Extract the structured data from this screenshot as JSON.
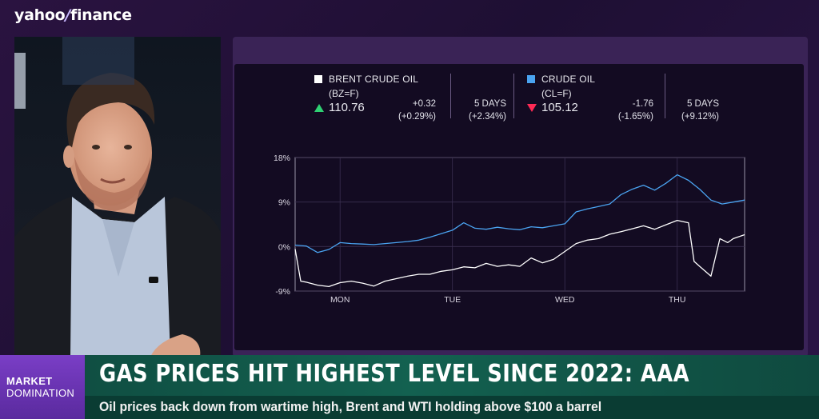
{
  "brand": {
    "logo_text_a": "yahoo",
    "logo_text_slash": "/",
    "logo_text_b": "finance"
  },
  "colors": {
    "brent": "#ffffff",
    "crude": "#4aa3f0",
    "up": "#2fd173",
    "down": "#ff2a55",
    "banner": "#136150",
    "show": "#6f35b8"
  },
  "quotes": [
    {
      "name": "BRENT CRUDE OIL",
      "symbol": "(BZ=F)",
      "price": "110.76",
      "direction": "up",
      "change": "+0.32",
      "change_pct": "(+0.29%)",
      "period_label": "5 DAYS",
      "period_change": "(+2.34%)"
    },
    {
      "name": "CRUDE OIL",
      "symbol": "(CL=F)",
      "price": "105.12",
      "direction": "down",
      "change": "-1.76",
      "change_pct": "(-1.65%)",
      "period_label": "5 DAYS",
      "period_change": "(+9.12%)"
    }
  ],
  "chart_data": {
    "type": "line",
    "ylim": [
      -9,
      18
    ],
    "y_ticks": [
      "18%",
      "9%",
      "0%",
      "-9%"
    ],
    "y_tick_values": [
      18,
      9,
      0,
      -9
    ],
    "x_ticks": [
      "MON",
      "TUE",
      "WED",
      "THU"
    ],
    "x_tick_values": [
      0.4,
      1.4,
      2.4,
      3.4
    ],
    "xlim": [
      0,
      4
    ],
    "series": [
      {
        "name": "CRUDE OIL",
        "color": "#4aa3f0",
        "x": [
          0.0,
          0.1,
          0.2,
          0.3,
          0.4,
          0.5,
          0.6,
          0.7,
          0.8,
          0.9,
          1.0,
          1.1,
          1.2,
          1.3,
          1.4,
          1.5,
          1.6,
          1.7,
          1.8,
          1.9,
          2.0,
          2.1,
          2.2,
          2.3,
          2.4,
          2.5,
          2.6,
          2.7,
          2.8,
          2.9,
          3.0,
          3.1,
          3.2,
          3.3,
          3.4,
          3.5,
          3.6,
          3.7,
          3.8,
          3.9,
          4.0
        ],
        "values": [
          0.3,
          0.1,
          -1.2,
          -0.6,
          0.8,
          0.6,
          0.5,
          0.4,
          0.6,
          0.8,
          1.0,
          1.3,
          1.9,
          2.6,
          3.3,
          4.8,
          3.7,
          3.5,
          3.9,
          3.6,
          3.4,
          4.0,
          3.8,
          4.2,
          4.6,
          7.0,
          7.6,
          8.1,
          8.6,
          10.5,
          11.6,
          12.4,
          11.4,
          12.8,
          14.5,
          13.4,
          11.6,
          9.4,
          8.6,
          9.0,
          9.4
        ]
      },
      {
        "name": "BRENT CRUDE OIL",
        "color": "#ffffff",
        "x": [
          0.0,
          0.05,
          0.1,
          0.2,
          0.3,
          0.4,
          0.5,
          0.6,
          0.7,
          0.8,
          0.9,
          1.0,
          1.1,
          1.2,
          1.3,
          1.4,
          1.5,
          1.6,
          1.7,
          1.8,
          1.9,
          2.0,
          2.1,
          2.2,
          2.3,
          2.4,
          2.5,
          2.6,
          2.7,
          2.8,
          2.9,
          3.0,
          3.1,
          3.2,
          3.3,
          3.4,
          3.5,
          3.55,
          3.6,
          3.7,
          3.78,
          3.85,
          3.9,
          4.0
        ],
        "values": [
          -0.5,
          -7.0,
          -7.2,
          -7.8,
          -8.1,
          -7.3,
          -7.0,
          -7.4,
          -8.0,
          -7.0,
          -6.5,
          -6.0,
          -5.6,
          -5.6,
          -5.0,
          -4.7,
          -4.1,
          -4.3,
          -3.4,
          -4.0,
          -3.7,
          -4.0,
          -2.3,
          -3.3,
          -2.6,
          -1.0,
          0.6,
          1.3,
          1.6,
          2.5,
          3.0,
          3.6,
          4.2,
          3.5,
          4.4,
          5.3,
          4.8,
          -3.0,
          -4.0,
          -6.0,
          1.6,
          0.8,
          1.6,
          2.4
        ]
      }
    ]
  },
  "lower_third": {
    "show_line1": "MARKET",
    "show_line2": "DOMINATION",
    "headline": "GAS PRICES HIT HIGHEST LEVEL SINCE 2022: AAA",
    "subline": "Oil prices back down from wartime high, Brent and WTI holding above $100 a barrel"
  }
}
